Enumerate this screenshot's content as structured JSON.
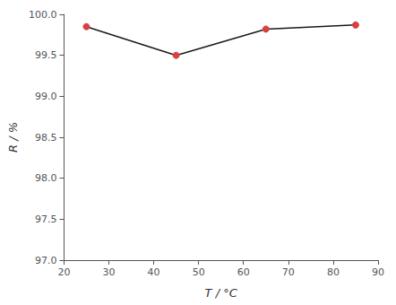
{
  "chart_data": {
    "type": "line",
    "x": [
      25,
      45,
      65,
      85
    ],
    "values": [
      99.85,
      99.5,
      99.82,
      99.87
    ],
    "xlabel": "T / °C",
    "ylabel": "R / %",
    "xlim": [
      20,
      90
    ],
    "ylim": [
      97.0,
      100.0
    ],
    "xticks": [
      20,
      30,
      40,
      50,
      60,
      70,
      80,
      90
    ],
    "yticks": [
      {
        "value": 97.0,
        "label": "97.0"
      },
      97.5,
      {
        "value": 98.0,
        "label": "98.0"
      },
      98.5,
      {
        "value": 99.0,
        "label": "99.0"
      },
      99.5,
      {
        "value": 100.0,
        "label": "100.0"
      }
    ],
    "color": "#1a1a1a",
    "colors": [
      "#d94040",
      "#d94040",
      "#d94040",
      "#d94040"
    ],
    "marker": "circle",
    "grid": false
  }
}
